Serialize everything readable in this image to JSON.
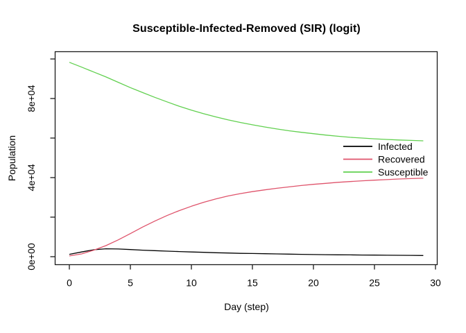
{
  "chart_data": {
    "type": "line",
    "title": "Susceptible-Infected-Removed (SIR) (logit)",
    "xlabel": "Day (step)",
    "ylabel": "Population",
    "xlim": [
      0,
      29
    ],
    "ylim": [
      0,
      100000
    ],
    "grid": false,
    "legend_position": "right-middle",
    "x": [
      0,
      1,
      2,
      3,
      4,
      5,
      6,
      7,
      8,
      9,
      10,
      11,
      12,
      13,
      14,
      15,
      16,
      17,
      18,
      19,
      20,
      21,
      22,
      23,
      24,
      25,
      26,
      27,
      28,
      29
    ],
    "xticks": [
      0,
      5,
      10,
      15,
      20,
      25,
      30
    ],
    "yticks": [
      {
        "value": 0,
        "label": "0e+00"
      },
      {
        "value": 20000,
        "label": ""
      },
      {
        "value": 40000,
        "label": "4e+04"
      },
      {
        "value": 60000,
        "label": ""
      },
      {
        "value": 80000,
        "label": "8e+04"
      },
      {
        "value": 100000,
        "label": ""
      }
    ],
    "series": [
      {
        "name": "Infected",
        "color": "#000000",
        "values": [
          1200,
          2400,
          3500,
          4000,
          3900,
          3600,
          3300,
          3050,
          2800,
          2600,
          2400,
          2200,
          2000,
          1850,
          1700,
          1600,
          1500,
          1400,
          1300,
          1200,
          1100,
          1000,
          950,
          900,
          850,
          800,
          750,
          700,
          650,
          600
        ]
      },
      {
        "name": "Recovered",
        "color": "#DF536B",
        "values": [
          400,
          1400,
          3300,
          5600,
          8500,
          11700,
          15000,
          18000,
          20800,
          23300,
          25500,
          27500,
          29200,
          30700,
          31900,
          32900,
          33800,
          34600,
          35300,
          36000,
          36600,
          37100,
          37600,
          38000,
          38400,
          38700,
          39000,
          39300,
          39500,
          39700
        ]
      },
      {
        "name": "Susceptible",
        "color": "#61D04F",
        "values": [
          98300,
          95900,
          93400,
          90900,
          88200,
          85500,
          83000,
          80600,
          78300,
          76100,
          74100,
          72300,
          70700,
          69200,
          67900,
          66700,
          65600,
          64600,
          63700,
          62900,
          62200,
          61500,
          60900,
          60400,
          60000,
          59600,
          59300,
          59000,
          58800,
          58600
        ]
      }
    ]
  },
  "frame": {
    "axis_color": "#1a1a1a"
  }
}
